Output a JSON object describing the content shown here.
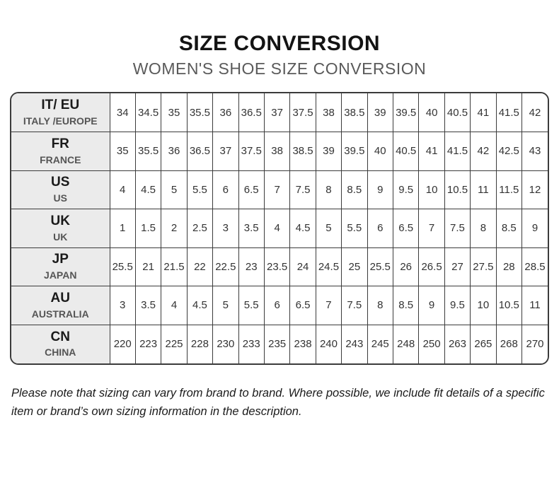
{
  "header": {
    "title": "SIZE CONVERSION",
    "subtitle": "WOMEN'S SHOE SIZE CONVERSION"
  },
  "table": {
    "rows": [
      {
        "code": "IT/ EU",
        "region": "ITALY /EUROPE",
        "sizes": [
          "34",
          "34.5",
          "35",
          "35.5",
          "36",
          "36.5",
          "37",
          "37.5",
          "38",
          "38.5",
          "39",
          "39.5",
          "40",
          "40.5",
          "41",
          "41.5",
          "42"
        ]
      },
      {
        "code": "FR",
        "region": "FRANCE",
        "sizes": [
          "35",
          "35.5",
          "36",
          "36.5",
          "37",
          "37.5",
          "38",
          "38.5",
          "39",
          "39.5",
          "40",
          "40.5",
          "41",
          "41.5",
          "42",
          "42.5",
          "43"
        ]
      },
      {
        "code": "US",
        "region": "US",
        "sizes": [
          "4",
          "4.5",
          "5",
          "5.5",
          "6",
          "6.5",
          "7",
          "7.5",
          "8",
          "8.5",
          "9",
          "9.5",
          "10",
          "10.5",
          "11",
          "11.5",
          "12"
        ]
      },
      {
        "code": "UK",
        "region": "UK",
        "sizes": [
          "1",
          "1.5",
          "2",
          "2.5",
          "3",
          "3.5",
          "4",
          "4.5",
          "5",
          "5.5",
          "6",
          "6.5",
          "7",
          "7.5",
          "8",
          "8.5",
          "9"
        ]
      },
      {
        "code": "JP",
        "region": "JAPAN",
        "sizes": [
          "25.5",
          "21",
          "21.5",
          "22",
          "22.5",
          "23",
          "23.5",
          "24",
          "24.5",
          "25",
          "25.5",
          "26",
          "26.5",
          "27",
          "27.5",
          "28",
          "28.5"
        ]
      },
      {
        "code": "AU",
        "region": "AUSTRALIA",
        "sizes": [
          "3",
          "3.5",
          "4",
          "4.5",
          "5",
          "5.5",
          "6",
          "6.5",
          "7",
          "7.5",
          "8",
          "8.5",
          "9",
          "9.5",
          "10",
          "10.5",
          "11"
        ]
      },
      {
        "code": "CN",
        "region": "CHINA",
        "sizes": [
          "220",
          "223",
          "225",
          "228",
          "230",
          "233",
          "235",
          "238",
          "240",
          "243",
          "245",
          "248",
          "250",
          "263",
          "265",
          "268",
          "270"
        ]
      }
    ]
  },
  "footnote": {
    "text": "Please note that sizing can vary from brand to brand. Where possible, we include fit details of a specific item or brand’s own sizing information in the description."
  },
  "colors": {
    "title_text": "#131313",
    "subtitle_text": "#5a5a5a",
    "table_border": "#3b3b3b",
    "header_cell_bg": "#ebebeb",
    "cell_text": "#333333"
  }
}
